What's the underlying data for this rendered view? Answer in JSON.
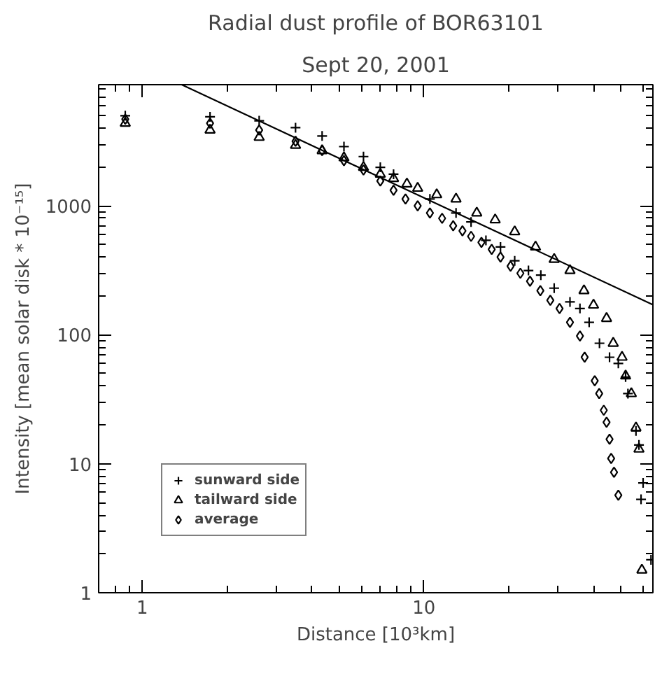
{
  "chart_data": {
    "type": "scatter",
    "title": "Radial dust profile of BOR63101",
    "subtitle": "Sept 20, 2001",
    "xlabel": "Distance [10³km]",
    "ylabel": "Intensity [mean solar disk * 10⁻¹⁵]",
    "log": "xy",
    "xlim": [
      0.7,
      65
    ],
    "ylim": [
      1,
      8700
    ],
    "xticks": [
      1,
      10
    ],
    "yticks": [
      1,
      10,
      100,
      1000
    ],
    "grid": false,
    "legend": "bottom left",
    "series": [
      {
        "name": "sunward side",
        "marker": "cross",
        "color": "#000000",
        "x": [
          0.87,
          1.74,
          2.6,
          3.5,
          4.35,
          5.2,
          6.1,
          7.0,
          7.8,
          10.5,
          13,
          14.7,
          16.6,
          18.7,
          21,
          23.5,
          26,
          29,
          33,
          35.8,
          38.6,
          42,
          45.6,
          49,
          52,
          53,
          56.6,
          58,
          60,
          59,
          64
        ],
        "values": [
          5000,
          4900,
          4570,
          4040,
          3480,
          2880,
          2410,
          1990,
          1760,
          1130,
          880,
          750,
          540,
          480,
          375,
          315,
          290,
          230,
          180,
          160,
          125,
          86,
          67,
          60,
          47,
          35,
          18,
          14,
          7.1,
          5.3,
          1.8
        ]
      },
      {
        "name": "tailward side",
        "marker": "triangle",
        "color": "#000000",
        "x": [
          0.87,
          1.74,
          2.6,
          3.5,
          4.35,
          5.2,
          6.1,
          7.0,
          7.8,
          8.7,
          9.5,
          11.1,
          13,
          15.4,
          17.9,
          21,
          24.9,
          29,
          33,
          37,
          40,
          44.5,
          47,
          50.5,
          52,
          54.5,
          56.6,
          58,
          59.4
        ],
        "values": [
          4370,
          3870,
          3400,
          2950,
          2680,
          2360,
          1990,
          1760,
          1630,
          1480,
          1370,
          1220,
          1130,
          880,
          780,
          630,
          480,
          385,
          315,
          220,
          170,
          134,
          86,
          67,
          48,
          35,
          19,
          13,
          1.5
        ]
      },
      {
        "name": "average",
        "marker": "diamond",
        "color": "#000000",
        "x": [
          0.87,
          1.74,
          2.6,
          3.5,
          4.35,
          5.2,
          6.1,
          7.0,
          7.8,
          8.6,
          9.5,
          10.5,
          11.6,
          12.7,
          13.7,
          14.7,
          16,
          17.4,
          18.7,
          20.3,
          22,
          23.8,
          25.9,
          28.1,
          30.3,
          33,
          35.8,
          37.2,
          40.4,
          41.9,
          43.5,
          44.5,
          45.6,
          46.2,
          47.3,
          49
        ],
        "values": [
          4700,
          4370,
          3870,
          3170,
          2680,
          2240,
          1900,
          1560,
          1320,
          1130,
          1000,
          880,
          800,
          700,
          640,
          580,
          520,
          460,
          400,
          340,
          300,
          260,
          220,
          185,
          160,
          125,
          98,
          67,
          44,
          35,
          26,
          21,
          15.5,
          11,
          8.6,
          5.7
        ]
      },
      {
        "type": "line",
        "color": "#000000",
        "x": [
          1.38,
          65
        ],
        "values": [
          8700,
          171
        ]
      }
    ]
  }
}
